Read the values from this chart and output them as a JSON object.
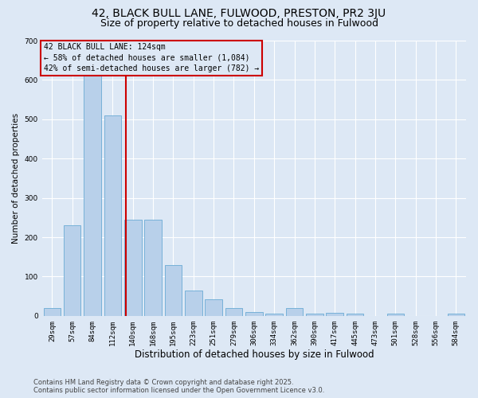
{
  "title": "42, BLACK BULL LANE, FULWOOD, PRESTON, PR2 3JU",
  "subtitle": "Size of property relative to detached houses in Fulwood",
  "xlabel": "Distribution of detached houses by size in Fulwood",
  "ylabel": "Number of detached properties",
  "categories": [
    "29sqm",
    "57sqm",
    "84sqm",
    "112sqm",
    "140sqm",
    "168sqm",
    "195sqm",
    "223sqm",
    "251sqm",
    "279sqm",
    "306sqm",
    "334sqm",
    "362sqm",
    "390sqm",
    "417sqm",
    "445sqm",
    "473sqm",
    "501sqm",
    "528sqm",
    "556sqm",
    "584sqm"
  ],
  "values": [
    20,
    230,
    645,
    510,
    245,
    245,
    130,
    65,
    43,
    20,
    10,
    5,
    20,
    5,
    8,
    5,
    0,
    5,
    0,
    0,
    5
  ],
  "bar_color": "#b8d0ea",
  "bar_edge_color": "#6aaad4",
  "bg_color": "#dde8f5",
  "grid_color": "#ffffff",
  "vline_x": 3.65,
  "vline_color": "#cc0000",
  "annotation_text": "42 BLACK BULL LANE: 124sqm\n← 58% of detached houses are smaller (1,084)\n42% of semi-detached houses are larger (782) →",
  "annotation_box_edgecolor": "#cc0000",
  "ylim": [
    0,
    700
  ],
  "yticks": [
    0,
    100,
    200,
    300,
    400,
    500,
    600,
    700
  ],
  "footnote": "Contains HM Land Registry data © Crown copyright and database right 2025.\nContains public sector information licensed under the Open Government Licence v3.0.",
  "title_fontsize": 10,
  "subtitle_fontsize": 9,
  "xlabel_fontsize": 8.5,
  "ylabel_fontsize": 7.5,
  "tick_fontsize": 6.5,
  "footnote_fontsize": 6,
  "ann_fontsize": 7
}
